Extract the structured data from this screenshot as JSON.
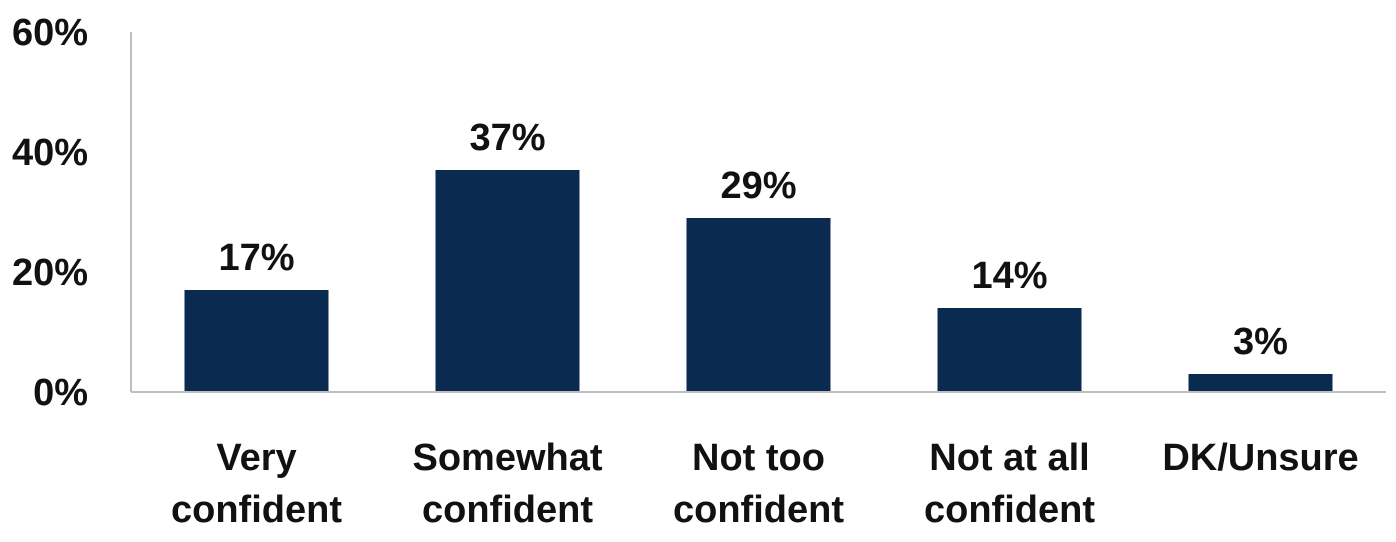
{
  "chart_data": {
    "type": "bar",
    "categories": [
      [
        "Very",
        "confident"
      ],
      [
        "Somewhat",
        "confident"
      ],
      [
        "Not too",
        "confident"
      ],
      [
        "Not at all",
        "confident"
      ],
      [
        "DK/Unsure"
      ]
    ],
    "values": [
      17,
      37,
      29,
      14,
      3
    ],
    "data_labels": [
      "17%",
      "37%",
      "29%",
      "14%",
      "3%"
    ],
    "yticks": [
      0,
      20,
      40,
      60
    ],
    "ytick_labels": [
      "0%",
      "20%",
      "40%",
      "60%"
    ],
    "ylim": [
      0,
      60
    ],
    "title": "",
    "xlabel": "",
    "ylabel": "",
    "grid": false,
    "legend": "none",
    "bar_color": "#0b2a50"
  }
}
